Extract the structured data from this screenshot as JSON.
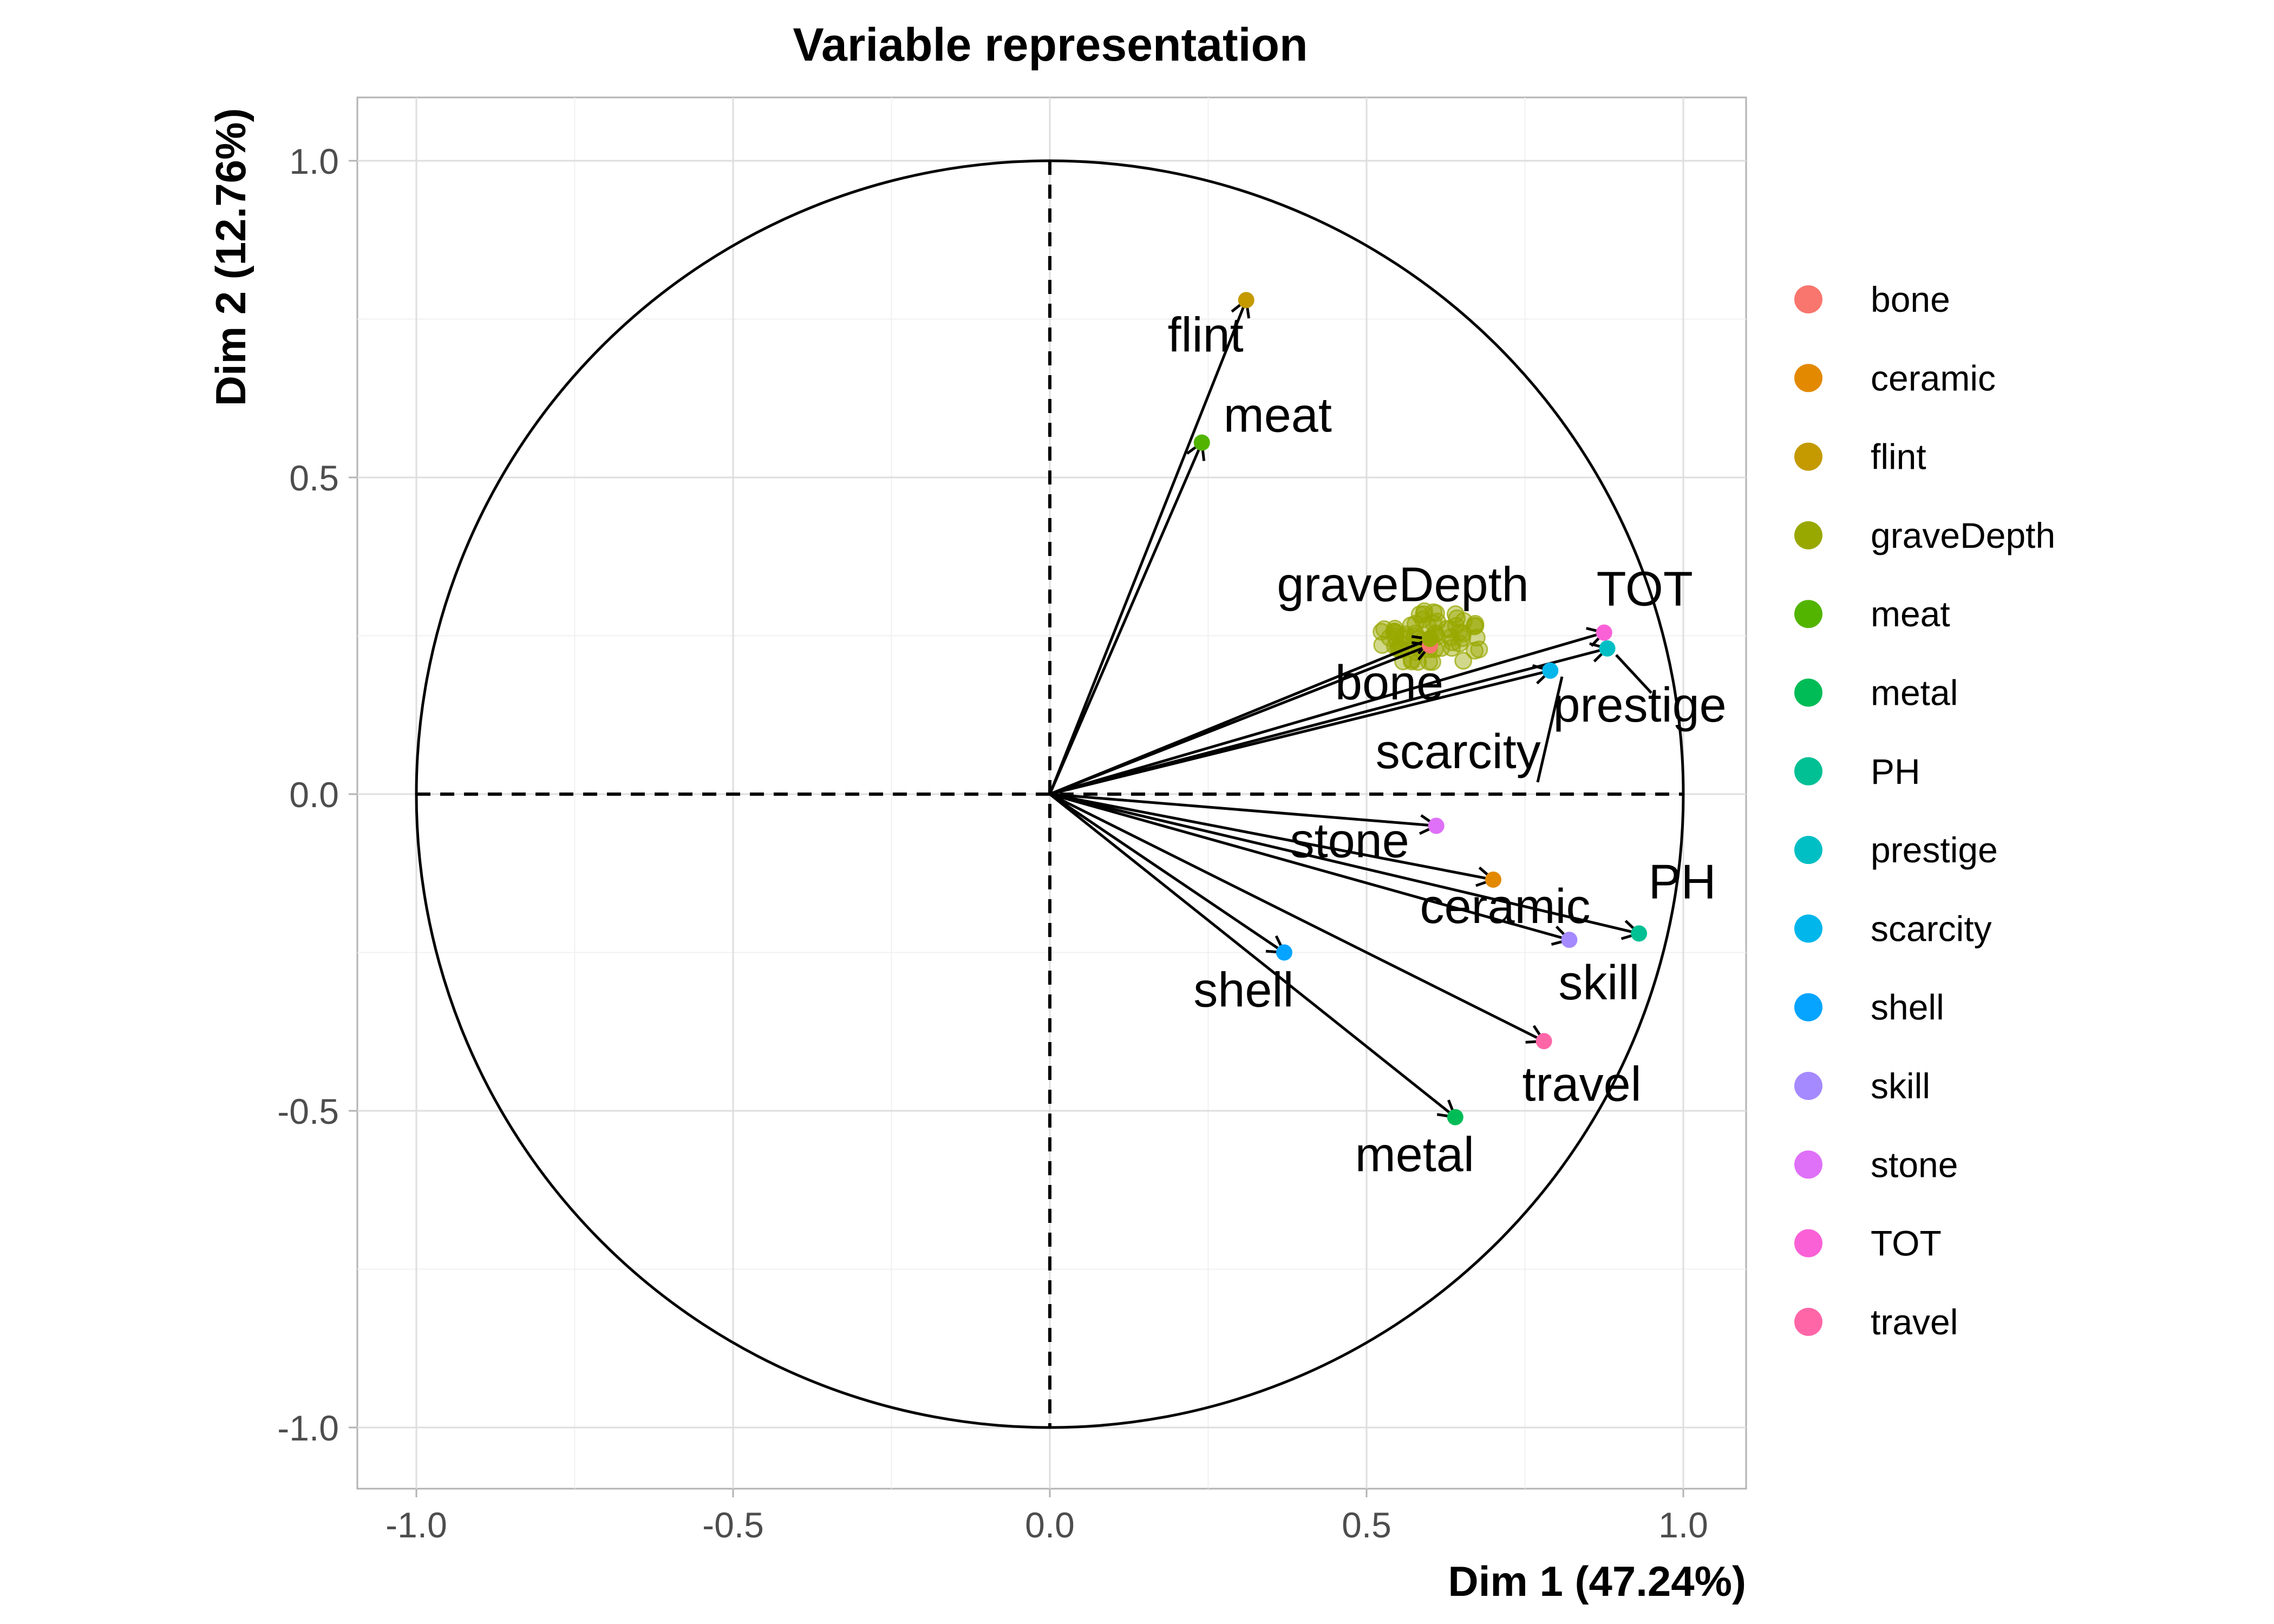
{
  "chart_data": {
    "type": "scatter",
    "title": "Variable representation",
    "xlabel": "Dim 1 (47.24%)",
    "ylabel": "Dim 2 (12.76%)",
    "xlim": [
      -1.1,
      1.1
    ],
    "ylim": [
      -1.1,
      1.1
    ],
    "x_ticks": [
      "-1.0",
      "-0.5",
      "0.0",
      "0.5",
      "1.0"
    ],
    "y_ticks": [
      "1.0",
      "0.5",
      "0.0",
      "-0.5",
      "-1.0"
    ],
    "grid": true,
    "legend": "right",
    "unit_circle": true,
    "variables": [
      {
        "name": "bone",
        "x": 0.6,
        "y": 0.235,
        "color": "#F8766D"
      },
      {
        "name": "ceramic",
        "x": 0.7,
        "y": -0.135,
        "color": "#E38900"
      },
      {
        "name": "flint",
        "x": 0.31,
        "y": 0.78,
        "color": "#C49A00"
      },
      {
        "name": "graveDepth",
        "x": 0.6,
        "y": 0.245,
        "color": "#99A800",
        "cloud": true
      },
      {
        "name": "meat",
        "x": 0.24,
        "y": 0.555,
        "color": "#53B400"
      },
      {
        "name": "metal",
        "x": 0.64,
        "y": -0.51,
        "color": "#00BC56"
      },
      {
        "name": "PH",
        "x": 0.93,
        "y": -0.22,
        "color": "#00C094"
      },
      {
        "name": "prestige",
        "x": 0.88,
        "y": 0.23,
        "color": "#00BFC4"
      },
      {
        "name": "scarcity",
        "x": 0.79,
        "y": 0.195,
        "color": "#00B6EB"
      },
      {
        "name": "shell",
        "x": 0.37,
        "y": -0.25,
        "color": "#06A4FF"
      },
      {
        "name": "skill",
        "x": 0.82,
        "y": -0.23,
        "color": "#A58AFF"
      },
      {
        "name": "stone",
        "x": 0.61,
        "y": -0.05,
        "color": "#DF70F8"
      },
      {
        "name": "TOT",
        "x": 0.875,
        "y": 0.255,
        "color": "#FB61D7"
      },
      {
        "name": "travel",
        "x": 0.78,
        "y": -0.39,
        "color": "#FF66A8"
      }
    ]
  }
}
